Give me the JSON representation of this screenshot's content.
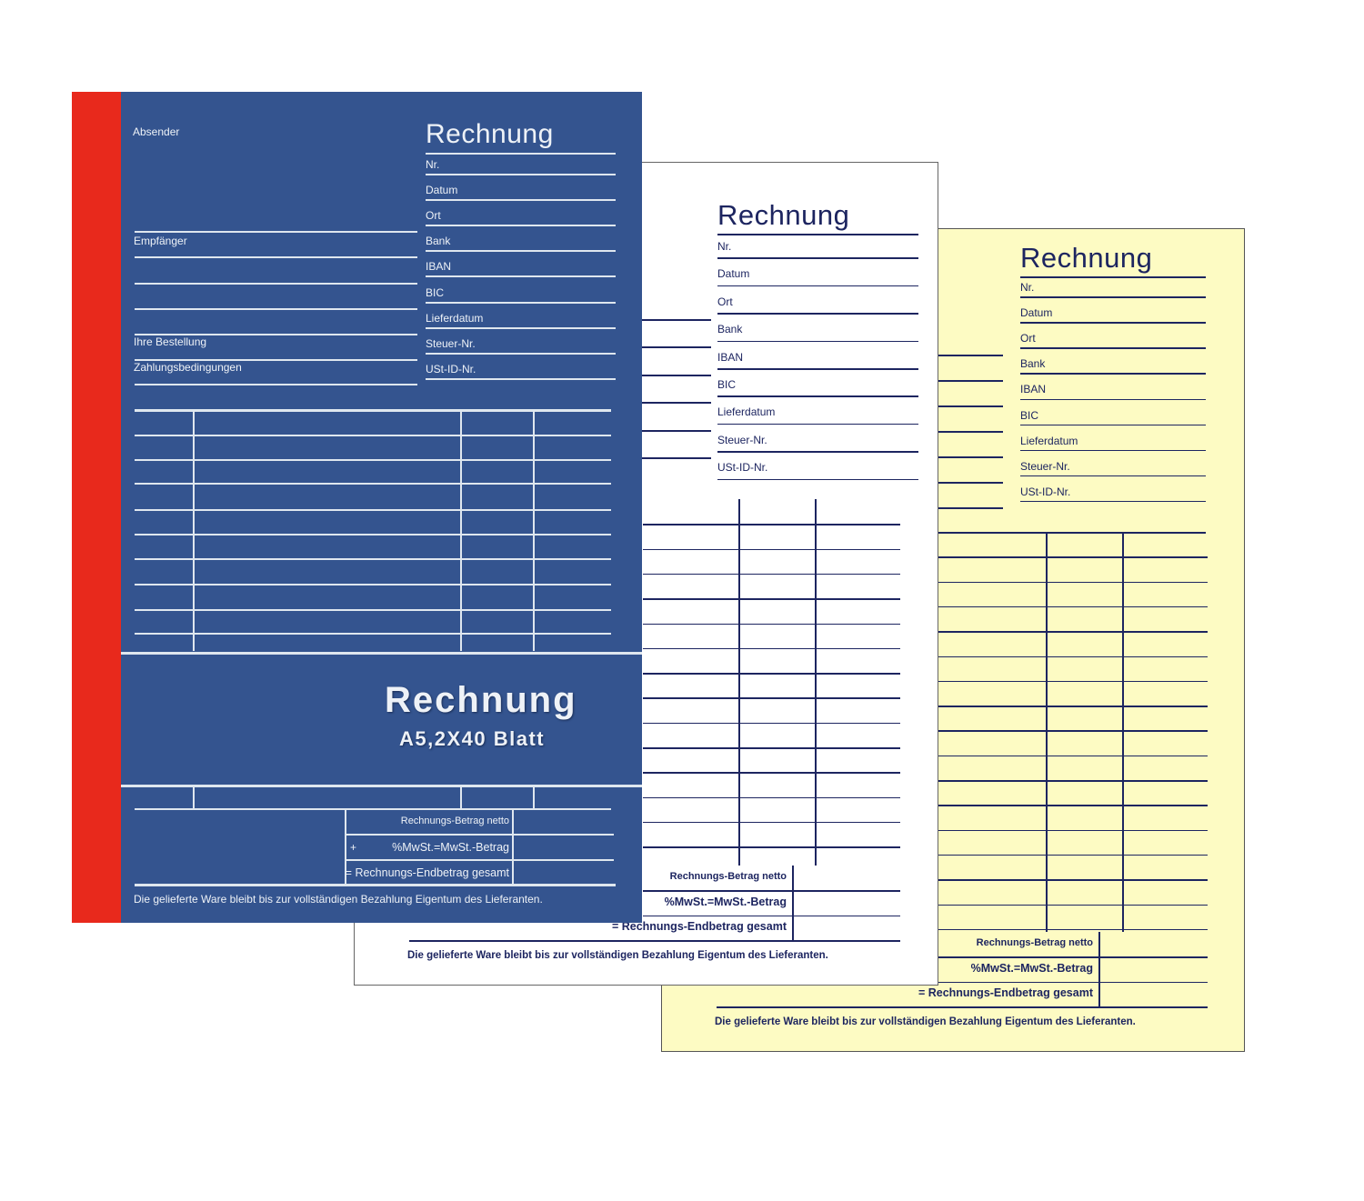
{
  "form": {
    "title": "Rechnung",
    "fields": [
      "Nr.",
      "Datum",
      "Ort",
      "Bank",
      "IBAN",
      "BIC",
      "Lieferdatum",
      "Steuer-Nr.",
      "USt-ID-Nr."
    ],
    "sender_label": "Absender",
    "recipient_label": "Empfänger",
    "order_label": "Ihre Bestellung",
    "payment_terms_label": "Zahlungsbedingungen",
    "totals": [
      "Rechnungs-Betrag netto",
      "%MwSt.=MwSt.-Betrag",
      "= Rechnungs-Endbetrag gesamt"
    ],
    "plus_sign": "+",
    "footer": "Die gelieferte Ware bleibt bis zur vollständigen Bezahlung Eigentum des Lieferanten."
  },
  "cover": {
    "product_title": "Rechnung",
    "product_subtitle": "A5,2X40 Blatt"
  },
  "colors": {
    "cover_blue": "#34548f",
    "spine_red": "#e8291c",
    "copy_yellow": "#fdfbc3",
    "ink_navy": "#1d2560"
  }
}
